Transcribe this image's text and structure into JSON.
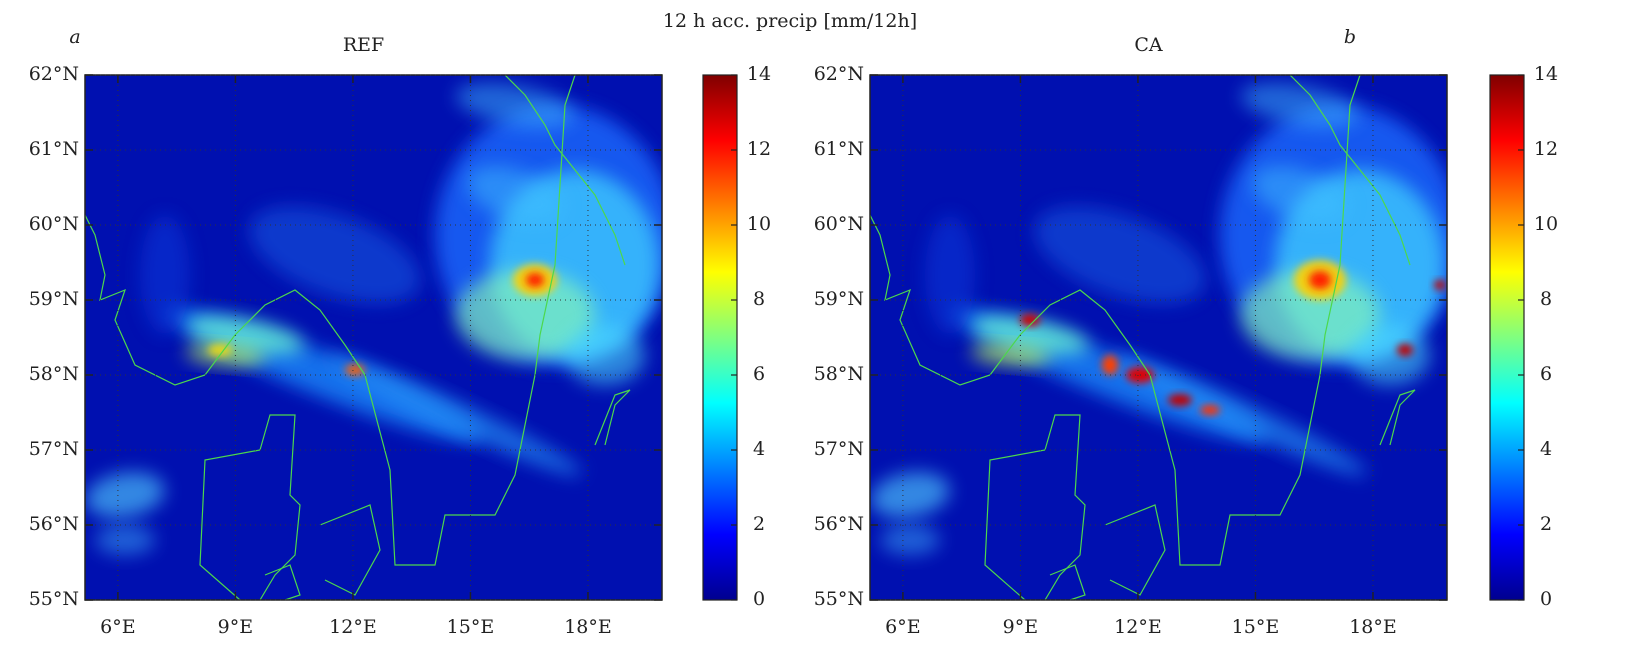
{
  "figure_title": "12 h acc. precip [mm/12h]",
  "chart_data": [
    {
      "type": "map",
      "panel_label": "a",
      "title": "REF",
      "xlim": [
        5.16,
        19.89
      ],
      "xticks": [
        {
          "value": 6,
          "label": "6°E"
        },
        {
          "value": 9,
          "label": "9°E"
        },
        {
          "value": 12,
          "label": "12°E"
        },
        {
          "value": 15,
          "label": "15°E"
        },
        {
          "value": 18,
          "label": "18°E"
        }
      ],
      "ylim": [
        55,
        62
      ],
      "yticks": [
        {
          "value": 55,
          "label": "55°N"
        },
        {
          "value": 56,
          "label": "56°N"
        },
        {
          "value": 57,
          "label": "57°N"
        },
        {
          "value": 58,
          "label": "58°N"
        },
        {
          "value": 59,
          "label": "59°N"
        },
        {
          "value": 60,
          "label": "60°N"
        },
        {
          "value": 61,
          "label": "61°N"
        },
        {
          "value": 62,
          "label": "62°N"
        }
      ],
      "grid": true,
      "colorbar": {
        "lim": [
          0,
          14
        ],
        "ticks": [
          0,
          2,
          4,
          6,
          8,
          10,
          12,
          14
        ],
        "colormap": "jet"
      }
    },
    {
      "type": "map",
      "panel_label": "b",
      "title": "CA",
      "xlim": [
        5.16,
        19.89
      ],
      "xticks": [
        {
          "value": 6,
          "label": "6°E"
        },
        {
          "value": 9,
          "label": "9°E"
        },
        {
          "value": 12,
          "label": "12°E"
        },
        {
          "value": 15,
          "label": "15°E"
        },
        {
          "value": 18,
          "label": "18°E"
        }
      ],
      "ylim": [
        55,
        62
      ],
      "yticks": [
        {
          "value": 55,
          "label": "55°N"
        },
        {
          "value": 56,
          "label": "56°N"
        },
        {
          "value": 57,
          "label": "57°N"
        },
        {
          "value": 58,
          "label": "58°N"
        },
        {
          "value": 59,
          "label": "59°N"
        },
        {
          "value": 60,
          "label": "60°N"
        },
        {
          "value": 61,
          "label": "61°N"
        },
        {
          "value": 62,
          "label": "62°N"
        }
      ],
      "grid": true,
      "colorbar": {
        "lim": [
          0,
          14
        ],
        "ticks": [
          0,
          2,
          4,
          6,
          8,
          10,
          12,
          14
        ],
        "colormap": "jet"
      }
    }
  ]
}
